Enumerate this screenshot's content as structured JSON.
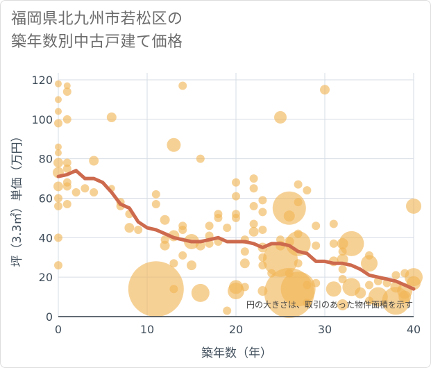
{
  "title_line1": "福岡県北九州市若松区の",
  "title_line2": "築年数別中古戸建て価格",
  "note": "円の大きさは、取引のあった物件面積を示す",
  "colors": {
    "bubble": "#f0b555",
    "line": "#cd6a4e",
    "grid": "#d6dce4",
    "text": "#3f4d5a"
  },
  "chart_data": {
    "type": "scatter",
    "xlabel": "築年数（年）",
    "ylabel": "坪（3.3㎡）単価（万円）",
    "xlim": [
      0,
      40
    ],
    "ylim": [
      0,
      120
    ],
    "xticks": [
      0,
      10,
      20,
      30,
      40
    ],
    "yticks": [
      0,
      20,
      40,
      60,
      80,
      100,
      120
    ],
    "grid": true,
    "series": [
      {
        "kind": "bubble",
        "points": [
          {
            "x": 0,
            "y": 118,
            "r": 5
          },
          {
            "x": 0,
            "y": 110,
            "r": 5
          },
          {
            "x": 0,
            "y": 104,
            "r": 5
          },
          {
            "x": 0,
            "y": 98,
            "r": 6
          },
          {
            "x": 0,
            "y": 86,
            "r": 5
          },
          {
            "x": 0,
            "y": 83,
            "r": 5
          },
          {
            "x": 0,
            "y": 78,
            "r": 7
          },
          {
            "x": 0,
            "y": 73,
            "r": 8
          },
          {
            "x": 0,
            "y": 66,
            "r": 7
          },
          {
            "x": 0,
            "y": 60,
            "r": 6
          },
          {
            "x": 0,
            "y": 56,
            "r": 6
          },
          {
            "x": 0,
            "y": 40,
            "r": 6
          },
          {
            "x": 0,
            "y": 26,
            "r": 6
          },
          {
            "x": 1,
            "y": 117,
            "r": 5
          },
          {
            "x": 1,
            "y": 114,
            "r": 6
          },
          {
            "x": 1,
            "y": 100,
            "r": 6
          },
          {
            "x": 1,
            "y": 78,
            "r": 6
          },
          {
            "x": 1,
            "y": 75,
            "r": 6
          },
          {
            "x": 1,
            "y": 68,
            "r": 6
          },
          {
            "x": 1,
            "y": 66,
            "r": 6
          },
          {
            "x": 1,
            "y": 57,
            "r": 6
          },
          {
            "x": 2,
            "y": 63,
            "r": 6
          },
          {
            "x": 3,
            "y": 65,
            "r": 6
          },
          {
            "x": 4,
            "y": 79,
            "r": 7
          },
          {
            "x": 4,
            "y": 63,
            "r": 6
          },
          {
            "x": 6,
            "y": 101,
            "r": 7
          },
          {
            "x": 6,
            "y": 65,
            "r": 5
          },
          {
            "x": 7,
            "y": 58,
            "r": 6
          },
          {
            "x": 7,
            "y": 56,
            "r": 6
          },
          {
            "x": 8,
            "y": 52,
            "r": 6
          },
          {
            "x": 8,
            "y": 45,
            "r": 7
          },
          {
            "x": 9,
            "y": 44,
            "r": 6
          },
          {
            "x": 11,
            "y": 62,
            "r": 6
          },
          {
            "x": 11,
            "y": 57,
            "r": 6
          },
          {
            "x": 11,
            "y": 14,
            "r": 40
          },
          {
            "x": 12,
            "y": 49,
            "r": 7
          },
          {
            "x": 12,
            "y": 39,
            "r": 6
          },
          {
            "x": 12,
            "y": 36,
            "r": 7
          },
          {
            "x": 13,
            "y": 87,
            "r": 10
          },
          {
            "x": 13,
            "y": 41,
            "r": 8
          },
          {
            "x": 13,
            "y": 27,
            "r": 6
          },
          {
            "x": 13,
            "y": 14,
            "r": 6
          },
          {
            "x": 14,
            "y": 117,
            "r": 6
          },
          {
            "x": 14,
            "y": 46,
            "r": 6
          },
          {
            "x": 14,
            "y": 44,
            "r": 6
          },
          {
            "x": 14,
            "y": 31,
            "r": 6
          },
          {
            "x": 15,
            "y": 38,
            "r": 11
          },
          {
            "x": 15,
            "y": 26,
            "r": 7
          },
          {
            "x": 16,
            "y": 80,
            "r": 6
          },
          {
            "x": 16,
            "y": 12,
            "r": 13
          },
          {
            "x": 16,
            "y": 36,
            "r": 7
          },
          {
            "x": 17,
            "y": 46,
            "r": 6
          },
          {
            "x": 17,
            "y": 41,
            "r": 6
          },
          {
            "x": 17,
            "y": 37,
            "r": 6
          },
          {
            "x": 18,
            "y": 52,
            "r": 6
          },
          {
            "x": 18,
            "y": 50,
            "r": 6
          },
          {
            "x": 18,
            "y": 38,
            "r": 6
          },
          {
            "x": 19,
            "y": 45,
            "r": 6
          },
          {
            "x": 19,
            "y": 3,
            "r": 6
          },
          {
            "x": 20,
            "y": 68,
            "r": 6
          },
          {
            "x": 20,
            "y": 61,
            "r": 6
          },
          {
            "x": 20,
            "y": 52,
            "r": 6
          },
          {
            "x": 20,
            "y": 50,
            "r": 6
          },
          {
            "x": 20,
            "y": 15,
            "r": 10
          },
          {
            "x": 20,
            "y": 13,
            "r": 12
          },
          {
            "x": 21,
            "y": 39,
            "r": 6
          },
          {
            "x": 21,
            "y": 33,
            "r": 6
          },
          {
            "x": 21,
            "y": 27,
            "r": 7
          },
          {
            "x": 21,
            "y": 15,
            "r": 6
          },
          {
            "x": 22,
            "y": 70,
            "r": 6
          },
          {
            "x": 22,
            "y": 65,
            "r": 6
          },
          {
            "x": 22,
            "y": 56,
            "r": 6
          },
          {
            "x": 22,
            "y": 47,
            "r": 6
          },
          {
            "x": 22,
            "y": 43,
            "r": 7
          },
          {
            "x": 23,
            "y": 59,
            "r": 6
          },
          {
            "x": 23,
            "y": 53,
            "r": 6
          },
          {
            "x": 23,
            "y": 44,
            "r": 6
          },
          {
            "x": 23,
            "y": 35,
            "r": 7
          },
          {
            "x": 23,
            "y": 30,
            "r": 6
          },
          {
            "x": 23,
            "y": 26,
            "r": 6
          },
          {
            "x": 23,
            "y": 13,
            "r": 7
          },
          {
            "x": 24,
            "y": 22,
            "r": 6
          },
          {
            "x": 25,
            "y": 101,
            "r": 9
          },
          {
            "x": 25,
            "y": 39,
            "r": 6
          },
          {
            "x": 25,
            "y": 36,
            "r": 7
          },
          {
            "x": 25,
            "y": 29,
            "r": 25
          },
          {
            "x": 26,
            "y": 55,
            "r": 24
          },
          {
            "x": 26,
            "y": 51,
            "r": 8
          },
          {
            "x": 26,
            "y": 38,
            "r": 7
          },
          {
            "x": 26,
            "y": 22,
            "r": 6
          },
          {
            "x": 26,
            "y": 12,
            "r": 36
          },
          {
            "x": 27,
            "y": 67,
            "r": 6
          },
          {
            "x": 27,
            "y": 58,
            "r": 6
          },
          {
            "x": 27,
            "y": 42,
            "r": 6
          },
          {
            "x": 27,
            "y": 37,
            "r": 18
          },
          {
            "x": 27,
            "y": 14,
            "r": 25
          },
          {
            "x": 27,
            "y": 27,
            "r": 6
          },
          {
            "x": 28,
            "y": 64,
            "r": 6
          },
          {
            "x": 28,
            "y": 16,
            "r": 6
          },
          {
            "x": 28,
            "y": 7,
            "r": 6
          },
          {
            "x": 29,
            "y": 46,
            "r": 6
          },
          {
            "x": 29,
            "y": 36,
            "r": 6
          },
          {
            "x": 29,
            "y": 17,
            "r": 6
          },
          {
            "x": 30,
            "y": 115,
            "r": 7
          },
          {
            "x": 31,
            "y": 47,
            "r": 6
          },
          {
            "x": 31,
            "y": 37,
            "r": 6
          },
          {
            "x": 31,
            "y": 28,
            "r": 7
          },
          {
            "x": 31,
            "y": 14,
            "r": 11
          },
          {
            "x": 32,
            "y": 37,
            "r": 8
          },
          {
            "x": 32,
            "y": 33,
            "r": 6
          },
          {
            "x": 32,
            "y": 29,
            "r": 8
          },
          {
            "x": 32,
            "y": 24,
            "r": 6
          },
          {
            "x": 32,
            "y": 19,
            "r": 6
          },
          {
            "x": 32,
            "y": 6,
            "r": 8
          },
          {
            "x": 33,
            "y": 37,
            "r": 18
          },
          {
            "x": 33,
            "y": 15,
            "r": 13
          },
          {
            "x": 34,
            "y": 12,
            "r": 8
          },
          {
            "x": 35,
            "y": 31,
            "r": 6
          },
          {
            "x": 35,
            "y": 27,
            "r": 12
          },
          {
            "x": 35,
            "y": 16,
            "r": 6
          },
          {
            "x": 35,
            "y": 8,
            "r": 6
          },
          {
            "x": 36,
            "y": 10,
            "r": 14
          },
          {
            "x": 36,
            "y": 18,
            "r": 6
          },
          {
            "x": 37,
            "y": 17,
            "r": 6
          },
          {
            "x": 38,
            "y": 21,
            "r": 6
          },
          {
            "x": 38,
            "y": 15,
            "r": 8
          },
          {
            "x": 38,
            "y": 8,
            "r": 20
          },
          {
            "x": 39,
            "y": 22,
            "r": 6
          },
          {
            "x": 39,
            "y": 13,
            "r": 11
          },
          {
            "x": 39,
            "y": 10,
            "r": 9
          },
          {
            "x": 40,
            "y": 56,
            "r": 11
          },
          {
            "x": 40,
            "y": 20,
            "r": 13
          },
          {
            "x": 40,
            "y": 17,
            "r": 10
          }
        ]
      },
      {
        "kind": "line",
        "x": [
          0,
          1,
          2,
          3,
          4,
          5,
          6,
          7,
          8,
          9,
          10,
          11,
          12,
          13,
          14,
          15,
          16,
          17,
          18,
          19,
          20,
          21,
          22,
          23,
          24,
          25,
          26,
          27,
          28,
          29,
          30,
          31,
          32,
          33,
          34,
          35,
          36,
          37,
          38,
          39,
          40
        ],
        "y": [
          71,
          72,
          74,
          70,
          70,
          68,
          63,
          57,
          55,
          48,
          45,
          44,
          42,
          40,
          39,
          38,
          38,
          39,
          40,
          38,
          38,
          38,
          37,
          35,
          37,
          37,
          36,
          33,
          32,
          28,
          28,
          27,
          27,
          26,
          24,
          21,
          20,
          19,
          18,
          16,
          14
        ]
      }
    ]
  }
}
